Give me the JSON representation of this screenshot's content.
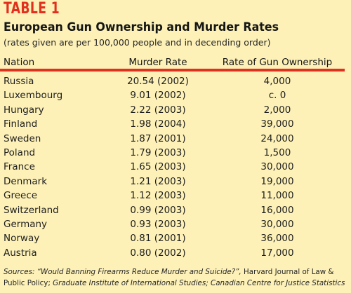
{
  "table_label": "TABLE 1",
  "title": "European Gun Ownership and Murder Rates",
  "subtitle": "(rates given are per 100,000 people and in decending order)",
  "colors": {
    "accent": "#e2301e",
    "background": "#fdf1b8",
    "text": "#1e1e1e"
  },
  "columns": [
    "Nation",
    "Murder Rate",
    "Rate of Gun Ownership"
  ],
  "rows": [
    {
      "nation": "Russia",
      "murder_rate": "20.54 (2002)",
      "gun_ownership": "4,000"
    },
    {
      "nation": "Luxembourg",
      "murder_rate": "9.01 (2002)",
      "gun_ownership": "c. 0"
    },
    {
      "nation": "Hungary",
      "murder_rate": "2.22 (2003)",
      "gun_ownership": "2,000"
    },
    {
      "nation": "Finland",
      "murder_rate": "1.98 (2004)",
      "gun_ownership": "39,000"
    },
    {
      "nation": "Sweden",
      "murder_rate": "1.87 (2001)",
      "gun_ownership": "24,000"
    },
    {
      "nation": "Poland",
      "murder_rate": "1.79 (2003)",
      "gun_ownership": "1,500"
    },
    {
      "nation": "France",
      "murder_rate": "1.65 (2003)",
      "gun_ownership": "30,000"
    },
    {
      "nation": "Denmark",
      "murder_rate": "1.21 (2003)",
      "gun_ownership": "19,000"
    },
    {
      "nation": "Greece",
      "murder_rate": "1.12 (2003)",
      "gun_ownership": "11,000"
    },
    {
      "nation": "Switzerland",
      "murder_rate": "0.99 (2003)",
      "gun_ownership": "16,000"
    },
    {
      "nation": "Germany",
      "murder_rate": "0.93 (2003)",
      "gun_ownership": "30,000"
    },
    {
      "nation": "Norway",
      "murder_rate": "0.81 (2001)",
      "gun_ownership": "36,000"
    },
    {
      "nation": "Austria",
      "murder_rate": "0.80 (2002)",
      "gun_ownership": "17,000"
    }
  ],
  "sources": {
    "prefix": "Sources: “Would Banning Firearms Reduce Murder and Suicide?”,",
    "journal": " Harvard Journal of Law & Public Policy;",
    "rest": " Graduate Institute of International Studies; Canadian Centre for Justice Statistics"
  }
}
